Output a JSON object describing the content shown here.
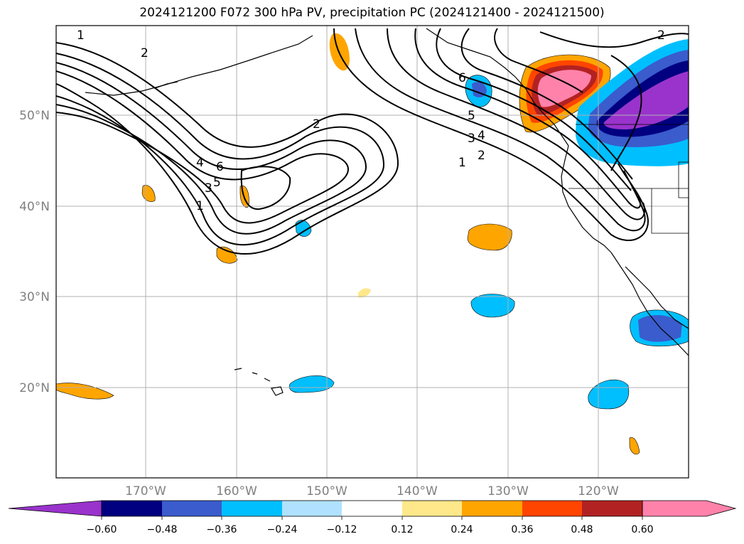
{
  "title": "2024121200 F072 300 hPa PV, precipitation PC (2024121400 - 2024121500)",
  "map": {
    "lat_labels": [
      "50°N",
      "40°N",
      "30°N",
      "20°N"
    ],
    "lon_labels": [
      "170°W",
      "160°W",
      "150°W",
      "140°W",
      "130°W",
      "120°W"
    ],
    "gridlines": true,
    "contour_labels": [
      "1",
      "2",
      "3",
      "4",
      "5",
      "6",
      "2",
      "1",
      "2",
      "3",
      "4",
      "5",
      "6",
      "1",
      "2"
    ]
  },
  "colorbar": {
    "ticks": [
      "−0.60",
      "−0.48",
      "−0.36",
      "−0.24",
      "−0.12",
      "0.12",
      "0.24",
      "0.36",
      "0.48",
      "0.60"
    ],
    "colors": [
      "#9933cc",
      "#000080",
      "#3a5ccc",
      "#00bfff",
      "#b0e2ff",
      "#ffffff",
      "#ffe88a",
      "#ffa500",
      "#ff4500",
      "#b22222",
      "#ff82ab"
    ]
  }
}
